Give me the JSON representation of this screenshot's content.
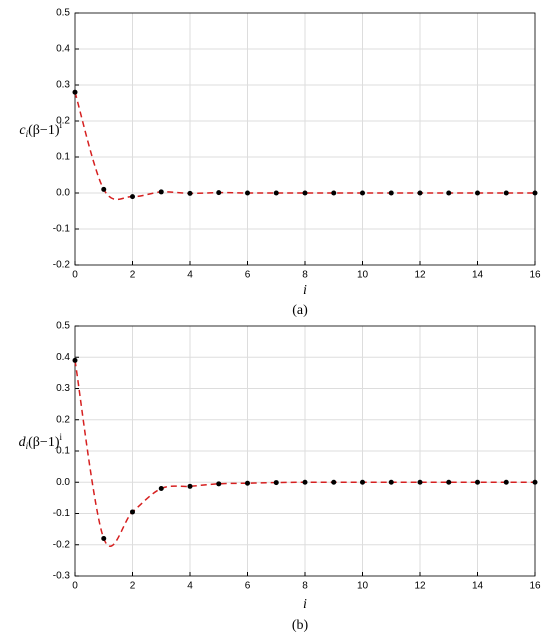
{
  "chart_data": [
    {
      "type": "line",
      "caption": "(a)",
      "x_label": "i",
      "y_label": {
        "symbol": "c",
        "subscript": "i",
        "base": "(β−1)",
        "superscript": "i"
      },
      "x": [
        0,
        1,
        2,
        3,
        4,
        5,
        6,
        7,
        8,
        9,
        10,
        11,
        12,
        13,
        14,
        15,
        16
      ],
      "series": [
        {
          "color": "#d62020",
          "marker_color": "#000000",
          "values": [
            0.28,
            0.01,
            -0.01,
            0.003,
            -0.001,
            0.001,
            0,
            0,
            0,
            0,
            0,
            0,
            0,
            0,
            0,
            0,
            0
          ]
        }
      ],
      "xlim": [
        0,
        16
      ],
      "xticks": [
        0,
        2,
        4,
        6,
        8,
        10,
        12,
        14,
        16
      ],
      "ylim": [
        -0.2,
        0.5
      ],
      "yticks": [
        -0.2,
        -0.1,
        {
          "value": 0,
          "label": "0.0"
        },
        0.1,
        0.2,
        0.3,
        0.4,
        0.5
      ],
      "grid": true
    },
    {
      "type": "line",
      "caption": "(b)",
      "x_label": "i",
      "y_label": {
        "symbol": "d",
        "subscript": "i",
        "base": "(β−1)",
        "superscript": "i"
      },
      "x": [
        0,
        1,
        2,
        3,
        4,
        5,
        6,
        7,
        8,
        9,
        10,
        11,
        12,
        13,
        14,
        15,
        16
      ],
      "series": [
        {
          "color": "#d62020",
          "marker_color": "#000000",
          "values": [
            0.39,
            -0.18,
            -0.095,
            -0.02,
            -0.013,
            -0.005,
            -0.003,
            -0.001,
            0,
            0,
            0,
            0,
            0,
            0,
            0,
            0,
            0
          ]
        }
      ],
      "xlim": [
        0,
        16
      ],
      "xticks": [
        0,
        2,
        4,
        6,
        8,
        10,
        12,
        14,
        16
      ],
      "ylim": [
        -0.3,
        0.5
      ],
      "yticks": [
        -0.3,
        -0.2,
        -0.1,
        {
          "value": 0,
          "label": "0.0"
        },
        0.1,
        0.2,
        0.3,
        0.4,
        0.5
      ],
      "grid": true
    }
  ]
}
